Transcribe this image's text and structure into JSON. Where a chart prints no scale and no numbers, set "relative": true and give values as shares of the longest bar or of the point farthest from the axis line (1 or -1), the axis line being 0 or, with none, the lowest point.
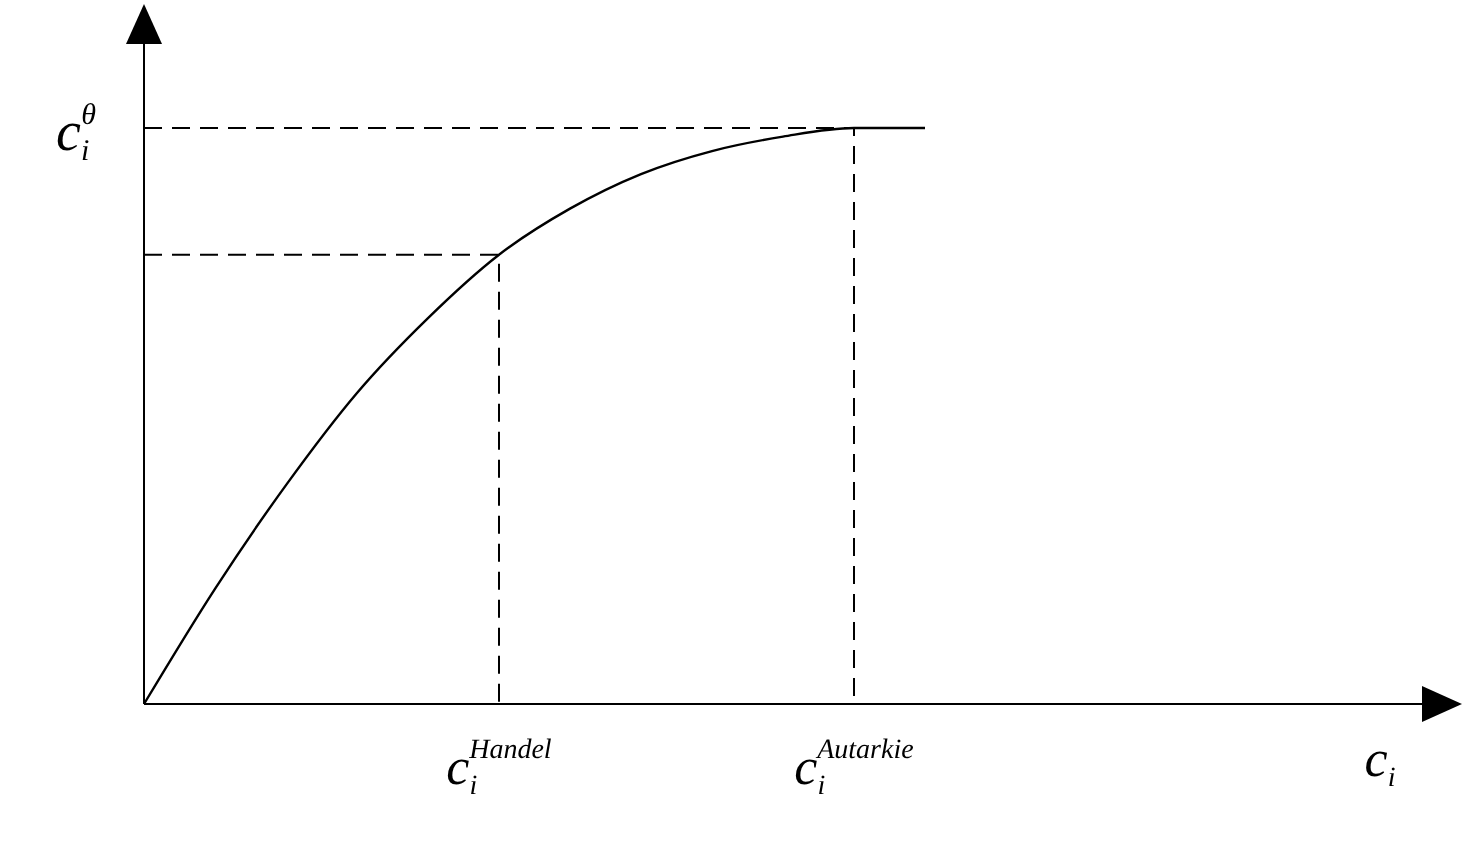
{
  "chart_data": {
    "type": "line",
    "relative": true,
    "ylabel": "c$_{i}$$^{θ}$",
    "xlabel": "c$_{i}$",
    "categories": [
      null,
      null,
      null,
      null,
      null,
      "c$_{i}$$^{Handel}$",
      null,
      null,
      null,
      null,
      "c$_{i}$$^{Autarkie}$",
      null,
      null,
      null,
      null,
      null,
      null,
      null,
      null
    ],
    "series": [
      {
        "color": "#000000",
        "values": [
          0,
          0.2,
          0.38,
          0.54,
          0.67,
          0.78,
          0.86,
          0.92,
          0.96,
          0.985,
          1,
          1,
          null,
          null,
          null,
          null,
          null,
          null,
          null
        ]
      }
    ],
    "ref_lines": [
      {
        "axis": "y",
        "value": 0.78,
        "line_style": "dashed"
      },
      {
        "axis": "y",
        "value": 1,
        "line_style": "dashed"
      }
    ],
    "marker": "none",
    "line_style": "solid"
  }
}
